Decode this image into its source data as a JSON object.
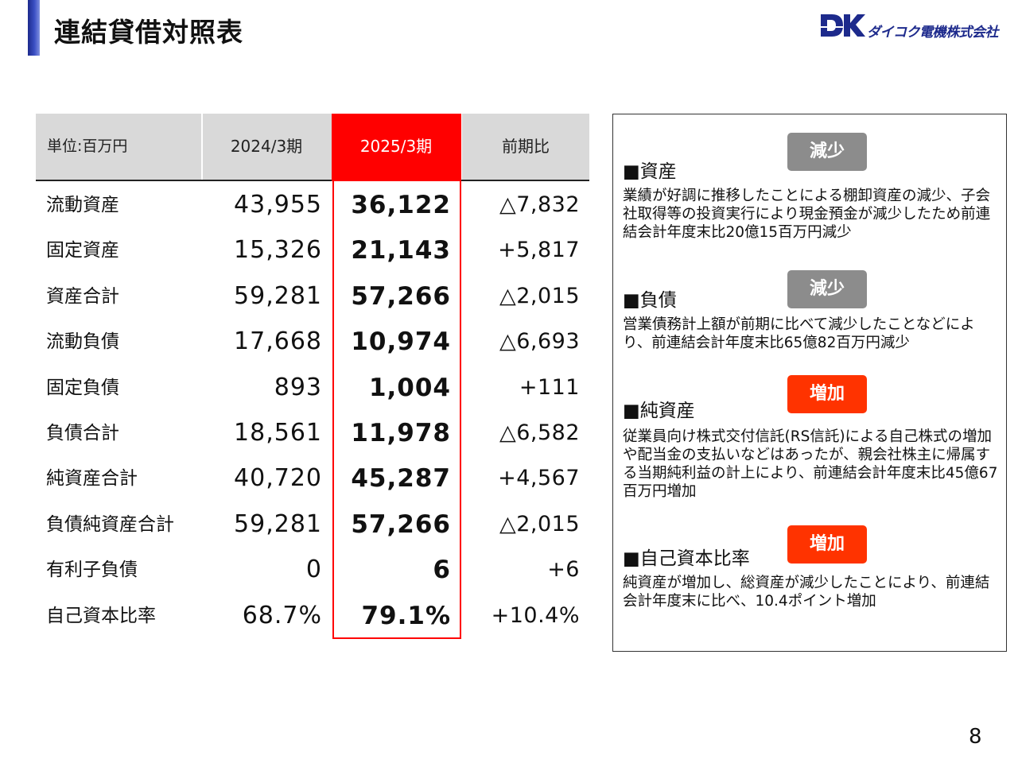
{
  "header": {
    "title": "連結貸借対照表",
    "logo_mark": "DK",
    "logo_text": "ダイコク電機株式会社"
  },
  "table": {
    "headers": {
      "unit": "単位:百万円",
      "prev": "2024/3期",
      "curr": "2025/3期",
      "diff": "前期比"
    },
    "rows": [
      {
        "label": "流動資産",
        "prev": "43,955",
        "curr": "36,122",
        "diff": "△7,832"
      },
      {
        "label": "固定資産",
        "prev": "15,326",
        "curr": "21,143",
        "diff": "+5,817"
      },
      {
        "label": "資産合計",
        "prev": "59,281",
        "curr": "57,266",
        "diff": "△2,015"
      },
      {
        "label": "流動負債",
        "prev": "17,668",
        "curr": "10,974",
        "diff": "△6,693"
      },
      {
        "label": "固定負債",
        "prev": "893",
        "curr": "1,004",
        "diff": "+111"
      },
      {
        "label": "負債合計",
        "prev": "18,561",
        "curr": "11,978",
        "diff": "△6,582"
      },
      {
        "label": "純資産合計",
        "prev": "40,720",
        "curr": "45,287",
        "diff": "+4,567"
      },
      {
        "label": "負債純資産合計",
        "prev": "59,281",
        "curr": "57,266",
        "diff": "△2,015"
      },
      {
        "label": "有利子負債",
        "prev": "0",
        "curr": "6",
        "diff": "+6"
      },
      {
        "label": "自己資本比率",
        "prev": "68.7%",
        "curr": "79.1%",
        "diff": "+10.4%"
      }
    ]
  },
  "panel": {
    "sections": [
      {
        "heading": "■資産",
        "badge": "減少",
        "badge_color": "#8c8c8c",
        "body": "業績が好調に推移したことによる棚卸資産の減少、子会社取得等の投資実行により現金預金が減少したため前連結会計年度末比20億15百万円減少"
      },
      {
        "heading": "■負債",
        "badge": "減少",
        "badge_color": "#8c8c8c",
        "body": "営業債務計上額が前期に比べて減少したことなどにより、前連結会計年度末比65億82百万円減少"
      },
      {
        "heading": "■純資産",
        "badge": "増加",
        "badge_color": "#ff3300",
        "body": "従業員向け株式交付信託(RS信託)による自己株式の増加や配当金の支払いなどはあったが、親会社株主に帰属する当期純利益の計上により、前連結会計年度末比45億67百万円増加"
      },
      {
        "heading": "■自己資本比率",
        "badge": "増加",
        "badge_color": "#ff3300",
        "body": "純資産が増加し、総資産が減少したことにより、前連結会計年度末に比べ、10.4ポイント増加"
      }
    ]
  },
  "footer": {
    "page_number": "8"
  }
}
